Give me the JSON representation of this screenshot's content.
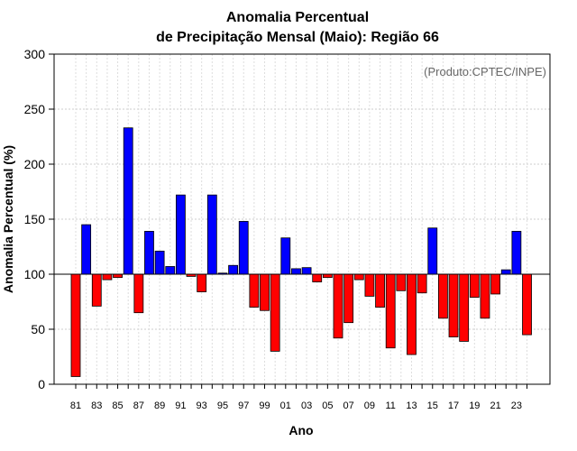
{
  "chart_data": {
    "type": "bar",
    "title_line1": "Anomalia Percentual",
    "title_line2": "de Precipitação Mensal (Maio): Região 66",
    "annotation": "(Produto:CPTEC/INPE)",
    "xlabel": "Ano",
    "ylabel": "Anomalia Percentual (%)",
    "ylim": [
      0,
      300
    ],
    "yticks": [
      0,
      50,
      100,
      150,
      200,
      250,
      300
    ],
    "baseline": 100,
    "grid": true,
    "categories": [
      "81",
      "82",
      "83",
      "84",
      "85",
      "86",
      "87",
      "88",
      "89",
      "90",
      "91",
      "92",
      "93",
      "94",
      "95",
      "96",
      "97",
      "98",
      "99",
      "00",
      "01",
      "02",
      "03",
      "04",
      "05",
      "06",
      "07",
      "08",
      "09",
      "10",
      "11",
      "12",
      "13",
      "14",
      "15",
      "16",
      "17",
      "18",
      "19",
      "20",
      "21",
      "22",
      "23",
      "24"
    ],
    "xtick_labels": [
      "81",
      "83",
      "85",
      "87",
      "89",
      "91",
      "93",
      "95",
      "97",
      "99",
      "01",
      "03",
      "05",
      "07",
      "09",
      "11",
      "13",
      "15",
      "17",
      "19",
      "21",
      "23"
    ],
    "values": [
      7,
      145,
      71,
      95,
      97,
      233,
      65,
      139,
      121,
      107,
      172,
      98,
      84,
      172,
      101,
      108,
      148,
      70,
      67,
      30,
      133,
      105,
      106,
      93,
      97,
      42,
      56,
      95,
      80,
      70,
      33,
      85,
      27,
      83,
      142,
      60,
      43,
      39,
      79,
      60,
      82,
      104,
      139,
      45
    ],
    "colors": {
      "above": "#0000ff",
      "below": "#ff0000"
    }
  }
}
